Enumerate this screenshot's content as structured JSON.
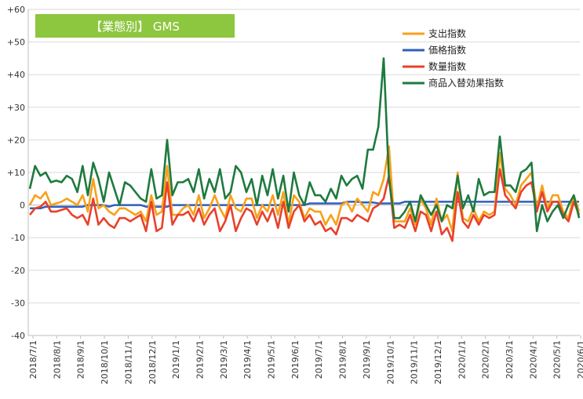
{
  "chart_data": {
    "type": "line",
    "title": "【業態別】 GMS",
    "title_bg": "#8dc63f",
    "xlabel": "",
    "ylabel": "",
    "ylim": [
      -40,
      60
    ],
    "yticks": [
      {
        "v": 60,
        "label": "+60"
      },
      {
        "v": 50,
        "label": "+50"
      },
      {
        "v": 40,
        "label": "+40"
      },
      {
        "v": 30,
        "label": "+30"
      },
      {
        "v": 20,
        "label": "+20"
      },
      {
        "v": 10,
        "label": "+10"
      },
      {
        "v": 0,
        "label": "0"
      },
      {
        "v": -10,
        "label": "-10"
      },
      {
        "v": -20,
        "label": "-20"
      },
      {
        "v": -30,
        "label": "-30"
      },
      {
        "v": -40,
        "label": "-40"
      }
    ],
    "grid": true,
    "legend_position": "top-right",
    "x_tick_labels": [
      "2018/7/1",
      "2018/8/1",
      "2018/9/1",
      "2018/10/1",
      "2018/11/1",
      "2018/12/1",
      "2019/1/1",
      "2019/2/1",
      "2019/3/1",
      "2019/4/1",
      "2019/5/1",
      "2019/6/1",
      "2019/7/1",
      "2019/8/1",
      "2019/9/1",
      "2019/10/1",
      "2019/11/1",
      "2019/12/1",
      "2020/1/1",
      "2020/2/1",
      "2020/3/1",
      "2020/4/1",
      "2020/5/1",
      "2020/6/1"
    ],
    "series": [
      {
        "name": "支出指数",
        "color": "#f7a11a",
        "values": [
          0,
          3,
          2,
          4,
          0,
          0.5,
          1,
          2,
          1,
          0,
          3,
          -2,
          8,
          -1,
          0,
          -2,
          -3,
          -1,
          -1,
          -2,
          -3,
          -2,
          -5,
          3,
          -3,
          -2,
          12,
          -3,
          -3,
          -1,
          0,
          -3,
          3,
          -4,
          -1,
          3,
          -1,
          -4,
          3,
          -1,
          -2,
          2,
          2,
          -4,
          0,
          -2,
          3,
          -3,
          4,
          -6,
          3,
          1,
          -4,
          -1,
          -2,
          -2,
          -6,
          -3,
          -6,
          0,
          1,
          -2,
          2,
          0,
          -2,
          4,
          3,
          8,
          18,
          -5,
          -5,
          -5,
          -1,
          -6,
          2,
          -1,
          -6,
          2,
          -5,
          -3,
          -8,
          10,
          -4,
          -5,
          -1,
          -5,
          -2,
          -3,
          -2,
          16,
          5,
          3,
          0,
          6,
          8,
          10,
          -1,
          6,
          -1,
          3,
          3,
          -2,
          -4,
          3,
          -2
        ],
        "values_length_note": ""
      },
      {
        "name": "価格指数",
        "color": "#2e5fbf",
        "values": [
          -1,
          -1,
          -1,
          -0.5,
          -0.5,
          -0.5,
          -0.5,
          -0.5,
          -0.5,
          -0.5,
          -0.5,
          0,
          0,
          0,
          0,
          -0.5,
          0,
          0,
          0,
          0,
          0,
          0,
          -0.5,
          -0.5,
          -0.5,
          -0.5,
          -0.5,
          0,
          0,
          0,
          0,
          0,
          0,
          0,
          0,
          0,
          0,
          0,
          0,
          0,
          0,
          0,
          0,
          0,
          0,
          0,
          0,
          0,
          0,
          0,
          0,
          0,
          0,
          0.5,
          0.5,
          0.5,
          0.5,
          0.5,
          0.5,
          0.5,
          1,
          1,
          1,
          0.8,
          0.8,
          0.8,
          0.5,
          0.5,
          0.5,
          0.5,
          0.5,
          1,
          1,
          1,
          1,
          1,
          1,
          1,
          1,
          1,
          1,
          1,
          1,
          1,
          1,
          1,
          1,
          1,
          1,
          1,
          1,
          1,
          1,
          1,
          1,
          1,
          1,
          1,
          1,
          1,
          1,
          1,
          1,
          1,
          1
        ],
        "values_length_note": ""
      },
      {
        "name": "数量指数",
        "color": "#e8412c",
        "values": [
          -3,
          -1,
          -0.5,
          1,
          -2,
          -2,
          -1.5,
          -1,
          -3,
          -4,
          -3,
          -6,
          2,
          -6,
          -4,
          -6,
          -7,
          -4,
          -4,
          -5,
          -4,
          -3,
          -8,
          1,
          -8,
          -7,
          7,
          -6,
          -3,
          -3,
          -2,
          -5,
          -1,
          -6,
          -3,
          -1,
          -8,
          -5,
          0,
          -8,
          -4,
          -1,
          -2,
          -6,
          -2,
          -5,
          -1,
          -7,
          1,
          -7,
          -2,
          0,
          -5,
          -3,
          -6,
          -5,
          -8,
          -7,
          -9,
          -4,
          -4,
          -5,
          -3,
          -4,
          -5,
          -1,
          0,
          2,
          9,
          -7,
          -6,
          -7,
          -3,
          -8,
          -2,
          -3,
          -8,
          -2,
          -9,
          -7,
          -11,
          4,
          -5,
          -7,
          -3,
          -6,
          -3,
          -4,
          -3,
          11,
          3,
          1,
          -1,
          4,
          6,
          7,
          -2,
          4,
          -2,
          1,
          1,
          -3,
          -5,
          1,
          -3
        ],
        "values_length_note": ""
      },
      {
        "name": "商品入替効果指数",
        "color": "#1e7a3e",
        "values": [
          5,
          12,
          9,
          10,
          7,
          7.5,
          7,
          9,
          8,
          4,
          12,
          3,
          13,
          8,
          1,
          10,
          5,
          0,
          7,
          6,
          4,
          2,
          1,
          11,
          2,
          3,
          20,
          3,
          7,
          7,
          8,
          4,
          11,
          2,
          8,
          4,
          11,
          2,
          4,
          12,
          10,
          4,
          8,
          0,
          9,
          3,
          11,
          2,
          9,
          -2,
          10,
          3,
          0,
          7,
          3,
          3,
          1,
          5,
          2,
          9,
          6,
          8,
          9,
          5,
          17,
          17,
          24,
          45,
          8,
          -4,
          -4,
          -2,
          1,
          -5,
          3,
          0,
          -3,
          0,
          -5,
          0,
          -1,
          9,
          -1,
          3,
          -2,
          8,
          3,
          4,
          4,
          21,
          6,
          6,
          4,
          10,
          11,
          13,
          -8,
          0,
          -5,
          -2,
          0,
          -4,
          0,
          3,
          -4
        ],
        "values_length_note": ""
      }
    ]
  }
}
